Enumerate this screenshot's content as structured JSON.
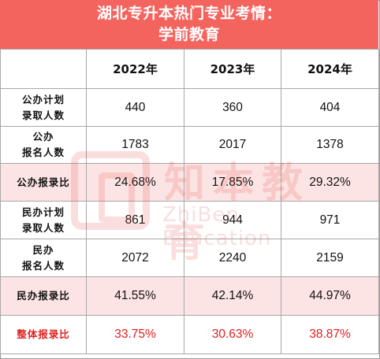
{
  "header": {
    "line1": "湖北专升本热门专业考情：",
    "line2": "学前教育"
  },
  "table": {
    "years": [
      "2022年",
      "2023年",
      "2024年"
    ],
    "rows": [
      {
        "label_line1": "公办计划",
        "label_line2": "录取人数",
        "values": [
          "440",
          "360",
          "404"
        ]
      },
      {
        "label_line1": "公办",
        "label_line2": "报名人数",
        "values": [
          "1783",
          "2017",
          "1378"
        ]
      },
      {
        "label_line1": "公办报录比",
        "label_line2": "",
        "values": [
          "24.68%",
          "17.85%",
          "29.32%"
        ]
      },
      {
        "label_line1": "民办计划",
        "label_line2": "录取人数",
        "values": [
          "861",
          "944",
          "971"
        ]
      },
      {
        "label_line1": "民办",
        "label_line2": "报名人数",
        "values": [
          "2072",
          "2240",
          "2159"
        ]
      },
      {
        "label_line1": "民办报录比",
        "label_line2": "",
        "values": [
          "41.55%",
          "42.14%",
          "44.97%"
        ]
      },
      {
        "label_line1": "整体报录比",
        "label_line2": "",
        "values": [
          "33.75%",
          "30.63%",
          "38.87%"
        ]
      }
    ]
  },
  "watermark": {
    "chinese": "知本教育",
    "english": "ZhiBen Education"
  },
  "colors": {
    "header_bg": "#f4645f",
    "pink_row": "#fde4e4",
    "total_text": "#e21d1d"
  }
}
